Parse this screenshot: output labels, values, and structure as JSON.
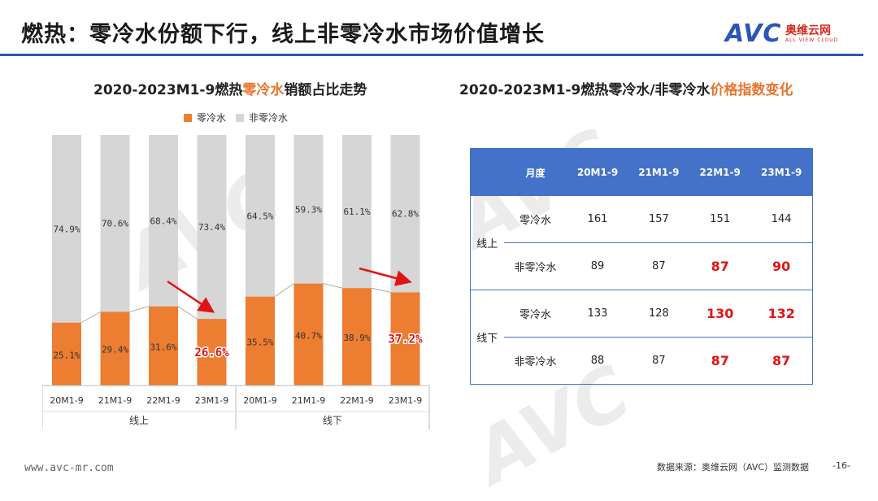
{
  "title": "燃热：零冷水份额下行，线上非零冷水市场价值增长",
  "logo": {
    "mark": "AVC",
    "cn": "奥维云网",
    "en": "ALL VIEW CLOUD"
  },
  "left_subtitle": {
    "pre": "2020-2023M1-9燃热",
    "hl": "零冷水",
    "post": "销额占比走势"
  },
  "right_subtitle": {
    "pre": "2020-2023M1-9燃热零冷水/非零冷水",
    "hl": "价格指数变化"
  },
  "colors": {
    "orange": "#ed7d31",
    "gray": "#d6d6d6",
    "blue": "#4372c8",
    "red": "#e01414"
  },
  "chart_data": {
    "type": "bar",
    "stacked": true,
    "title": "2020-2023M1-9燃热零冷水销额占比走势",
    "legend": [
      "零冷水",
      "非零冷水"
    ],
    "groups": [
      "线上",
      "线下"
    ],
    "categories": [
      "20M1-9",
      "21M1-9",
      "22M1-9",
      "23M1-9",
      "20M1-9",
      "21M1-9",
      "22M1-9",
      "23M1-9"
    ],
    "series": [
      {
        "name": "零冷水",
        "values": [
          25.1,
          29.4,
          31.6,
          26.6,
          35.5,
          40.7,
          38.9,
          37.2
        ]
      },
      {
        "name": "非零冷水",
        "values": [
          74.9,
          70.6,
          68.4,
          73.4,
          64.5,
          59.3,
          61.1,
          62.8
        ]
      }
    ],
    "ylim": [
      0,
      100
    ],
    "unit": "%",
    "highlight": [
      3,
      7
    ]
  },
  "table": {
    "header": [
      "月度",
      "20M1-9",
      "21M1-9",
      "22M1-9",
      "23M1-9"
    ],
    "groups": [
      {
        "name": "线上",
        "rows": [
          {
            "label": "零冷水",
            "values": [
              "161",
              "157",
              "151",
              "144"
            ],
            "hl": [
              false,
              false,
              false,
              false
            ]
          },
          {
            "label": "非零冷水",
            "values": [
              "89",
              "87",
              "87",
              "90"
            ],
            "hl": [
              false,
              false,
              true,
              true
            ]
          }
        ]
      },
      {
        "name": "线下",
        "rows": [
          {
            "label": "零冷水",
            "values": [
              "133",
              "128",
              "130",
              "132"
            ],
            "hl": [
              false,
              false,
              true,
              true
            ]
          },
          {
            "label": "非零冷水",
            "values": [
              "88",
              "87",
              "87",
              "87"
            ],
            "hl": [
              false,
              false,
              true,
              true
            ]
          }
        ]
      }
    ]
  },
  "footer": {
    "url": "www.avc-mr.com",
    "source": "数据来源：奥维云网（AVC）监测数据",
    "page": "-16-"
  }
}
